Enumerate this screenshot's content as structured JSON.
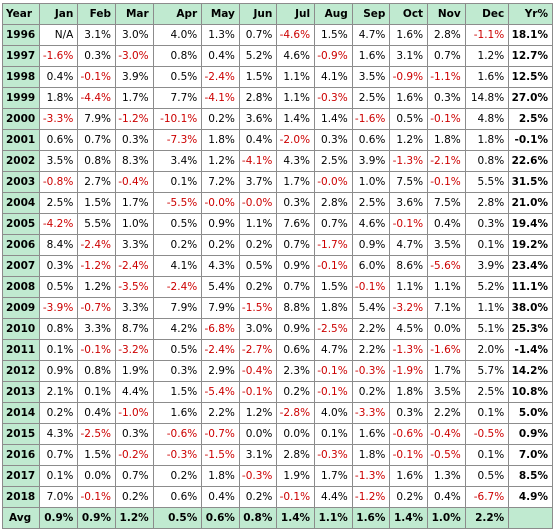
{
  "table": {
    "headers": [
      "Year",
      "Jan",
      "Feb",
      "Mar",
      "Apr",
      "May",
      "Jun",
      "Jul",
      "Aug",
      "Sep",
      "Oct",
      "Nov",
      "Dec",
      "Yr%"
    ],
    "rows": [
      {
        "year": "1996",
        "cells": [
          "N/A",
          "3.1%",
          "3.0%",
          "4.0%",
          "1.3%",
          "0.7%",
          "-4.6%",
          "1.5%",
          "4.7%",
          "1.6%",
          "2.8%",
          "-1.1%"
        ],
        "yr": "18.1%"
      },
      {
        "year": "1997",
        "cells": [
          "-1.6%",
          "0.3%",
          "-3.0%",
          "0.8%",
          "0.4%",
          "5.2%",
          "4.6%",
          "-0.9%",
          "1.6%",
          "3.1%",
          "0.7%",
          "1.2%"
        ],
        "yr": "12.7%"
      },
      {
        "year": "1998",
        "cells": [
          "0.4%",
          "-0.1%",
          "3.9%",
          "0.5%",
          "-2.4%",
          "1.5%",
          "1.1%",
          "4.1%",
          "3.5%",
          "-0.9%",
          "-1.1%",
          "1.6%"
        ],
        "yr": "12.5%"
      },
      {
        "year": "1999",
        "cells": [
          "1.8%",
          "-4.4%",
          "1.7%",
          "7.7%",
          "-4.1%",
          "2.8%",
          "1.1%",
          "-0.3%",
          "2.5%",
          "1.6%",
          "0.3%",
          "14.8%"
        ],
        "yr": "27.0%"
      },
      {
        "year": "2000",
        "cells": [
          "-3.3%",
          "7.9%",
          "-1.2%",
          "-10.1%",
          "0.2%",
          "3.6%",
          "1.4%",
          "1.4%",
          "-1.6%",
          "0.5%",
          "-0.1%",
          "4.8%"
        ],
        "yr": "2.5%"
      },
      {
        "year": "2001",
        "cells": [
          "0.6%",
          "0.7%",
          "0.3%",
          "-7.3%",
          "1.8%",
          "0.4%",
          "-2.0%",
          "0.3%",
          "0.6%",
          "1.2%",
          "1.8%",
          "1.8%"
        ],
        "yr": "-0.1%"
      },
      {
        "year": "2002",
        "cells": [
          "3.5%",
          "0.8%",
          "8.3%",
          "3.4%",
          "1.2%",
          "-4.1%",
          "4.3%",
          "2.5%",
          "3.9%",
          "-1.3%",
          "-2.1%",
          "0.8%"
        ],
        "yr": "22.6%"
      },
      {
        "year": "2003",
        "cells": [
          "-0.8%",
          "2.7%",
          "-0.4%",
          "0.1%",
          "7.2%",
          "3.7%",
          "1.7%",
          "-0.0%",
          "1.0%",
          "7.5%",
          "-0.1%",
          "5.5%"
        ],
        "yr": "31.5%"
      },
      {
        "year": "2004",
        "cells": [
          "2.5%",
          "1.5%",
          "1.7%",
          "-5.5%",
          "-0.0%",
          "-0.0%",
          "0.3%",
          "2.8%",
          "2.5%",
          "3.6%",
          "7.5%",
          "2.8%"
        ],
        "yr": "21.0%"
      },
      {
        "year": "2005",
        "cells": [
          "-4.2%",
          "5.5%",
          "1.0%",
          "0.5%",
          "0.9%",
          "1.1%",
          "7.6%",
          "0.7%",
          "4.6%",
          "-0.1%",
          "0.4%",
          "0.3%"
        ],
        "yr": "19.4%"
      },
      {
        "year": "2006",
        "cells": [
          "8.4%",
          "-2.4%",
          "3.3%",
          "0.2%",
          "0.2%",
          "0.2%",
          "0.7%",
          "-1.7%",
          "0.9%",
          "4.7%",
          "3.5%",
          "0.1%"
        ],
        "yr": "19.2%"
      },
      {
        "year": "2007",
        "cells": [
          "0.3%",
          "-1.2%",
          "-2.4%",
          "4.1%",
          "4.3%",
          "0.5%",
          "0.9%",
          "-0.1%",
          "6.0%",
          "8.6%",
          "-5.6%",
          "3.9%"
        ],
        "yr": "23.4%"
      },
      {
        "year": "2008",
        "cells": [
          "0.5%",
          "1.2%",
          "-3.5%",
          "-2.4%",
          "5.4%",
          "0.2%",
          "0.7%",
          "1.5%",
          "-0.1%",
          "1.1%",
          "1.1%",
          "5.2%"
        ],
        "yr": "11.1%"
      },
      {
        "year": "2009",
        "cells": [
          "-3.9%",
          "-0.7%",
          "3.3%",
          "7.9%",
          "7.9%",
          "-1.5%",
          "8.8%",
          "1.8%",
          "5.4%",
          "-3.2%",
          "7.1%",
          "1.1%"
        ],
        "yr": "38.0%"
      },
      {
        "year": "2010",
        "cells": [
          "0.8%",
          "3.3%",
          "8.7%",
          "4.2%",
          "-6.8%",
          "3.0%",
          "0.9%",
          "-2.5%",
          "2.2%",
          "4.5%",
          "0.0%",
          "5.1%"
        ],
        "yr": "25.3%"
      },
      {
        "year": "2011",
        "cells": [
          "0.1%",
          "-0.1%",
          "-3.2%",
          "0.5%",
          "-2.4%",
          "-2.7%",
          "0.6%",
          "4.7%",
          "2.2%",
          "-1.3%",
          "-1.6%",
          "2.0%"
        ],
        "yr": "-1.4%"
      },
      {
        "year": "2012",
        "cells": [
          "0.9%",
          "0.8%",
          "1.9%",
          "0.3%",
          "2.9%",
          "-0.4%",
          "2.3%",
          "-0.1%",
          "-0.3%",
          "-1.9%",
          "1.7%",
          "5.7%"
        ],
        "yr": "14.2%"
      },
      {
        "year": "2013",
        "cells": [
          "2.1%",
          "0.1%",
          "4.4%",
          "1.5%",
          "-5.4%",
          "-0.1%",
          "0.2%",
          "-0.1%",
          "0.2%",
          "1.8%",
          "3.5%",
          "2.5%"
        ],
        "yr": "10.8%"
      },
      {
        "year": "2014",
        "cells": [
          "0.2%",
          "0.4%",
          "-1.0%",
          "1.6%",
          "2.2%",
          "1.2%",
          "-2.8%",
          "4.0%",
          "-3.3%",
          "0.3%",
          "2.2%",
          "0.1%"
        ],
        "yr": "5.0%"
      },
      {
        "year": "2015",
        "cells": [
          "4.3%",
          "-2.5%",
          "0.3%",
          "-0.6%",
          "-0.7%",
          "0.0%",
          "0.0%",
          "0.1%",
          "1.6%",
          "-0.6%",
          "-0.4%",
          "-0.5%"
        ],
        "yr": "0.9%"
      },
      {
        "year": "2016",
        "cells": [
          "0.7%",
          "1.5%",
          "-0.2%",
          "-0.3%",
          "-1.5%",
          "3.1%",
          "2.8%",
          "-0.3%",
          "1.8%",
          "-0.1%",
          "-0.5%",
          "0.1%"
        ],
        "yr": "7.0%"
      },
      {
        "year": "2017",
        "cells": [
          "0.1%",
          "0.0%",
          "0.7%",
          "0.2%",
          "1.8%",
          "-0.3%",
          "1.9%",
          "1.7%",
          "-1.3%",
          "1.6%",
          "1.3%",
          "0.5%"
        ],
        "yr": "8.5%"
      },
      {
        "year": "2018",
        "cells": [
          "7.0%",
          "-0.1%",
          "0.2%",
          "0.6%",
          "0.4%",
          "0.2%",
          "-0.1%",
          "4.4%",
          "-1.2%",
          "0.2%",
          "0.4%",
          "-6.7%"
        ],
        "yr": "4.9%"
      }
    ],
    "avg": {
      "label": "Avg",
      "cells": [
        "0.9%",
        "0.9%",
        "1.2%",
        "0.5%",
        "0.6%",
        "0.8%",
        "1.4%",
        "1.1%",
        "1.6%",
        "1.4%",
        "1.0%",
        "2.2%"
      ],
      "yr": ""
    }
  },
  "colors": {
    "header_bg": "#c0ead0",
    "negative": "#cc0000",
    "border": "#8c8c8c"
  }
}
